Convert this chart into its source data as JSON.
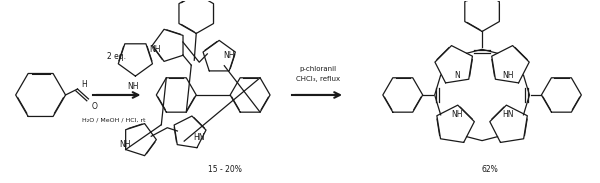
{
  "background_color": "#ffffff",
  "figsize": [
    6.0,
    1.83
  ],
  "dpi": 100,
  "text_color": "#1a1a1a",
  "reaction_conditions_1": "H₂O / MeOH / HCl, rt",
  "reagent_2_eq": "2 eq.",
  "reagent_above_2_line1": "p-chloranil",
  "reagent_above_2_line2": "CHCl₃, reflux",
  "yield_1": "15 - 20%",
  "yield_2": "62%"
}
